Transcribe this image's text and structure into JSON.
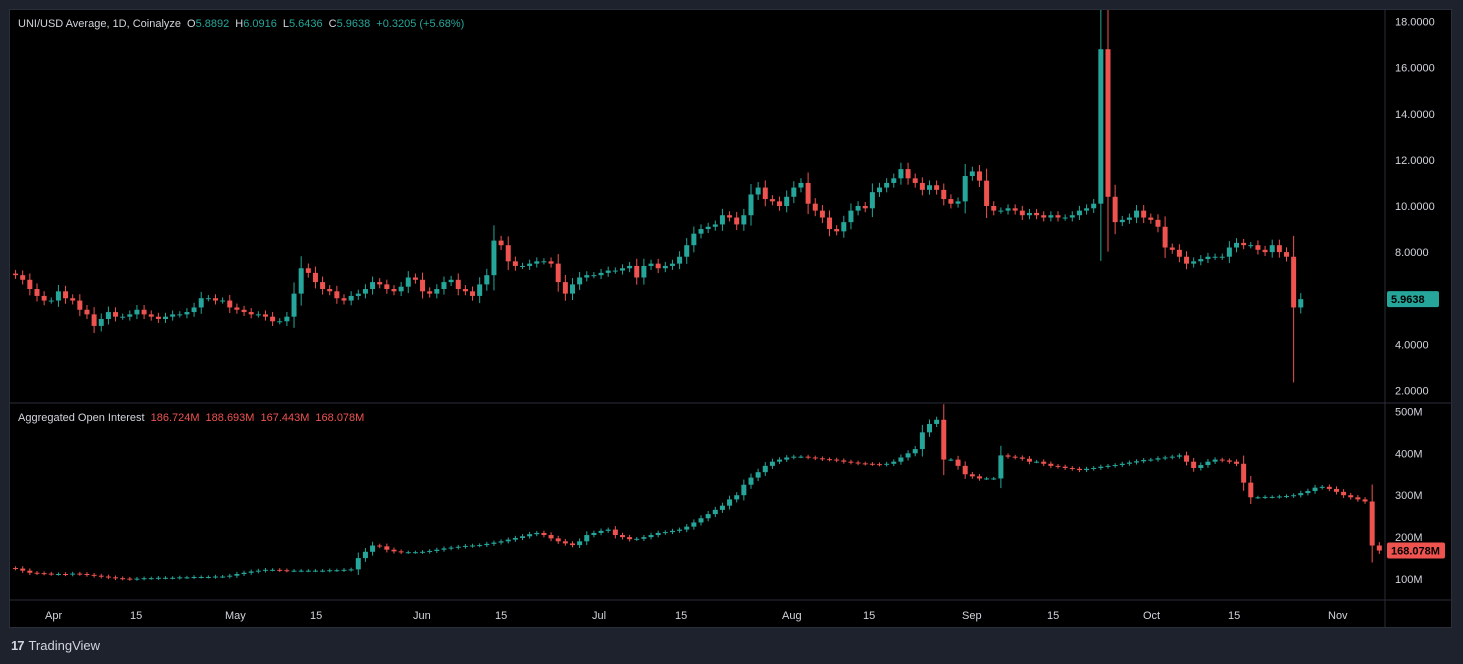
{
  "header": {
    "symbol": "UNI/USD Average, 1D, Coinalyze",
    "o_label": "O",
    "o_value": "5.8892",
    "h_label": "H",
    "h_value": "6.0916",
    "l_label": "L",
    "l_value": "5.6436",
    "c_label": "C",
    "c_value": "5.9638",
    "change": "+0.3205 (+5.68%)"
  },
  "oi_header": {
    "title": "Aggregated Open Interest",
    "v1": "186.724M",
    "v2": "188.693M",
    "v3": "167.443M",
    "v4": "168.078M"
  },
  "footer": {
    "brand": "TradingView",
    "logo": "17"
  },
  "colors": {
    "up": "#26a69a",
    "down": "#ef5350",
    "text": "#d1d4dc",
    "background": "#000000",
    "grid": "#2a2e39"
  },
  "chart_data": [
    {
      "type": "candlestick",
      "title": "UNI/USD Average, 1D, Coinalyze",
      "ylim": [
        1.5,
        18.5
      ],
      "y_ticks": [
        "18.0000",
        "16.0000",
        "14.0000",
        "12.0000",
        "10.0000",
        "8.0000",
        "6.0000",
        "4.0000",
        "2.0000"
      ],
      "last_value_label": "5.9638",
      "x_ticks": [
        "Apr",
        "15",
        "May",
        "15",
        "Jun",
        "15",
        "Jul",
        "15",
        "Aug",
        "15",
        "Sep",
        "15",
        "Oct",
        "15",
        "Nov"
      ],
      "series": [
        {
          "close": [
            7.0,
            6.8,
            6.4,
            6.1,
            5.9,
            5.9,
            6.3,
            6.0,
            5.9,
            5.5,
            5.3,
            4.8,
            5.1,
            5.4,
            5.2,
            5.2,
            5.3,
            5.5,
            5.3,
            5.2,
            5.1,
            5.2,
            5.3,
            5.3,
            5.4,
            5.6,
            6.0,
            6.0,
            5.9,
            5.9,
            5.6,
            5.5,
            5.4,
            5.3,
            5.3,
            5.2,
            5.0,
            5.0,
            5.2,
            6.2,
            7.3,
            7.1,
            6.7,
            6.4,
            6.3,
            6.0,
            5.9,
            6.1,
            6.2,
            6.4,
            6.7,
            6.6,
            6.4,
            6.3,
            6.5,
            6.9,
            6.8,
            6.3,
            6.2,
            6.4,
            6.7,
            6.8,
            6.4,
            6.3,
            6.1,
            6.6,
            7.0,
            8.5,
            8.3,
            7.6,
            7.4,
            7.4,
            7.5,
            7.6,
            7.6,
            7.5,
            6.7,
            6.2,
            6.6,
            6.9,
            7.0,
            7.0,
            7.1,
            7.2,
            7.2,
            7.3,
            7.4,
            6.9,
            7.4,
            7.5,
            7.3,
            7.4,
            7.5,
            7.8,
            8.3,
            8.8,
            9.0,
            9.1,
            9.2,
            9.6,
            9.5,
            9.2,
            9.6,
            10.5,
            10.8,
            10.3,
            10.2,
            10.0,
            10.4,
            10.8,
            11.0,
            10.1,
            9.8,
            9.5,
            9.0,
            8.9,
            9.3,
            9.8,
            10.0,
            9.9,
            10.6,
            10.8,
            11.0,
            11.2,
            11.6,
            11.2,
            11.0,
            10.7,
            10.9,
            10.7,
            10.3,
            10.1,
            10.2,
            11.3,
            11.5,
            11.1,
            10.0,
            9.8,
            9.8,
            9.9,
            9.8,
            9.6,
            9.7,
            9.6,
            9.5,
            9.6,
            9.5,
            9.5,
            9.6,
            9.8,
            9.9,
            10.1,
            16.8,
            10.4,
            9.3,
            9.4,
            9.5,
            9.8,
            9.5,
            9.4,
            9.1,
            8.2,
            8.1,
            7.8,
            7.5,
            7.6,
            7.7,
            7.8,
            7.8,
            7.8,
            8.2,
            8.4,
            8.3,
            8.3,
            8.1,
            8.0,
            8.3,
            8.0,
            7.8,
            5.6,
            5.96
          ]
        }
      ]
    },
    {
      "type": "candlestick",
      "title": "Aggregated Open Interest",
      "ylim": [
        50,
        520
      ],
      "y_ticks": [
        "500M",
        "400M",
        "300M",
        "200M",
        "100M"
      ],
      "last_value_label": "168.078M",
      "series": [
        {
          "close": [
            125,
            120,
            115,
            114,
            113,
            112,
            112,
            111,
            113,
            112,
            110,
            108,
            106,
            104,
            102,
            101,
            100,
            101,
            102,
            102,
            103,
            103,
            103,
            104,
            104,
            105,
            105,
            105,
            106,
            106,
            108,
            112,
            115,
            118,
            120,
            122,
            122,
            121,
            120,
            120,
            120,
            120,
            120,
            120,
            121,
            121,
            122,
            123,
            150,
            165,
            180,
            178,
            170,
            166,
            164,
            164,
            164,
            165,
            167,
            170,
            173,
            175,
            177,
            179,
            180,
            181,
            184,
            187,
            190,
            194,
            198,
            202,
            207,
            210,
            205,
            197,
            190,
            185,
            181,
            190,
            205,
            210,
            215,
            218,
            205,
            200,
            195,
            196,
            200,
            205,
            210,
            212,
            215,
            218,
            225,
            235,
            245,
            255,
            265,
            275,
            290,
            300,
            325,
            342,
            355,
            370,
            380,
            385,
            390,
            392,
            392,
            390,
            388,
            386,
            385,
            383,
            380,
            378,
            376,
            375,
            374,
            373,
            375,
            380,
            390,
            400,
            410,
            450,
            470,
            480,
            385,
            385,
            370,
            350,
            345,
            340,
            340,
            340,
            395,
            392,
            390,
            387,
            380,
            380,
            375,
            370,
            368,
            365,
            363,
            360,
            363,
            365,
            368,
            370,
            372,
            375,
            378,
            381,
            384,
            385,
            388,
            390,
            392,
            395,
            380,
            365,
            372,
            380,
            385,
            383,
            380,
            375,
            330,
            295,
            295,
            296,
            296,
            297,
            298,
            300,
            305,
            310,
            318,
            320,
            315,
            308,
            300,
            295,
            290,
            285,
            180,
            168
          ]
        }
      ]
    }
  ]
}
